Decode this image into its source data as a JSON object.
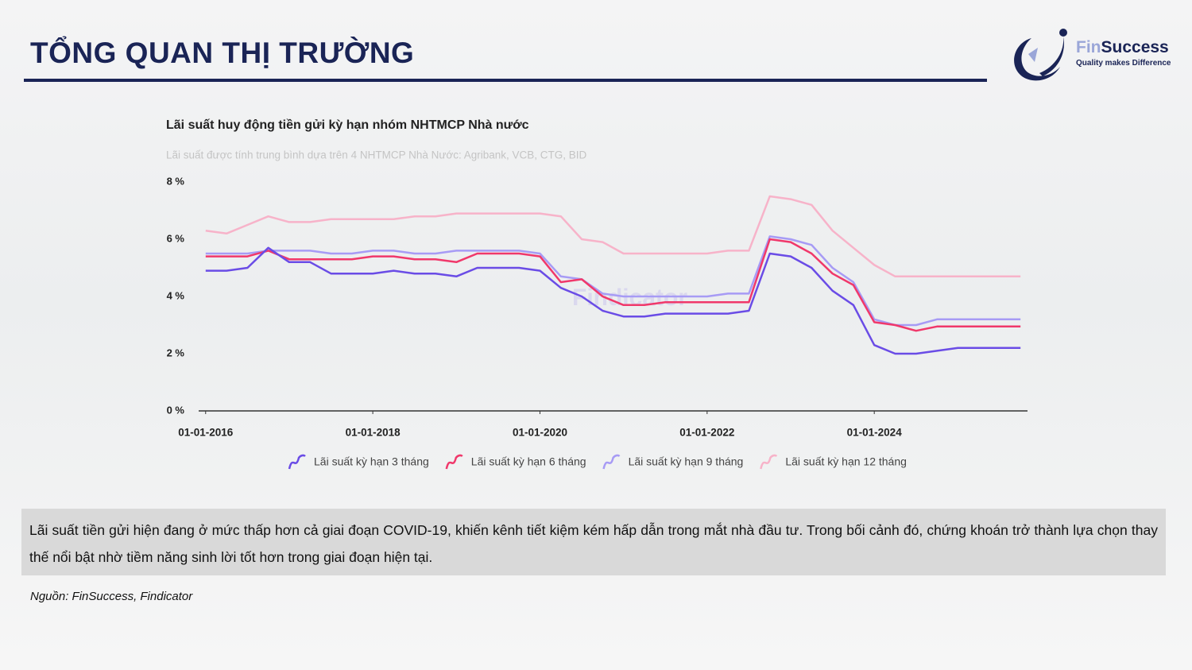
{
  "header": {
    "title": "TỔNG QUAN THỊ TRƯỜNG"
  },
  "logo": {
    "name_part1": "Fin",
    "name_part2": "Success",
    "tagline": "Quality makes Difference"
  },
  "chart_data": {
    "type": "line",
    "title": "Lãi suất huy động tiền gửi kỳ hạn nhóm NHTMCP Nhà nước",
    "subtitle": "Lãi suất được tính trung bình dựa trên 4 NHTMCP Nhà Nước: Agribank, VCB, CTG, BID",
    "watermark": "Findicator",
    "x": [
      "01-01-2016",
      "01-04-2016",
      "01-07-2016",
      "01-10-2016",
      "01-01-2017",
      "01-04-2017",
      "01-07-2017",
      "01-10-2017",
      "01-01-2018",
      "01-04-2018",
      "01-07-2018",
      "01-10-2018",
      "01-01-2019",
      "01-04-2019",
      "01-07-2019",
      "01-10-2019",
      "01-01-2020",
      "01-04-2020",
      "01-07-2020",
      "01-10-2020",
      "01-01-2021",
      "01-04-2021",
      "01-07-2021",
      "01-10-2021",
      "01-01-2022",
      "01-04-2022",
      "01-07-2022",
      "01-10-2022",
      "01-01-2023",
      "01-04-2023",
      "01-07-2023",
      "01-10-2023",
      "01-01-2024",
      "01-04-2024",
      "01-07-2024",
      "01-10-2024",
      "01-01-2025",
      "01-04-2025",
      "01-07-2025",
      "01-10-2025"
    ],
    "series": [
      {
        "name": "Lãi suất kỳ hạn 3 tháng",
        "color": "#6a4ce6",
        "values": [
          4.9,
          4.9,
          5.0,
          5.7,
          5.2,
          5.2,
          4.8,
          4.8,
          4.8,
          4.9,
          4.8,
          4.8,
          4.7,
          5.0,
          5.0,
          5.0,
          4.9,
          4.3,
          4.0,
          3.5,
          3.3,
          3.3,
          3.4,
          3.4,
          3.4,
          3.4,
          3.5,
          5.5,
          5.4,
          5.0,
          4.2,
          3.7,
          2.3,
          2.0,
          2.0,
          2.1,
          2.2,
          2.2,
          2.2,
          2.2
        ]
      },
      {
        "name": "Lãi suất kỳ hạn 6 tháng",
        "color": "#f0386b",
        "values": [
          5.4,
          5.4,
          5.4,
          5.6,
          5.3,
          5.3,
          5.3,
          5.3,
          5.4,
          5.4,
          5.3,
          5.3,
          5.2,
          5.5,
          5.5,
          5.5,
          5.4,
          4.5,
          4.6,
          4.0,
          3.7,
          3.7,
          3.8,
          3.8,
          3.8,
          3.8,
          3.8,
          6.0,
          5.9,
          5.5,
          4.8,
          4.4,
          3.1,
          3.0,
          2.8,
          2.95,
          2.95,
          2.95,
          2.95,
          2.95
        ]
      },
      {
        "name": "Lãi suất kỳ hạn 9 tháng",
        "color": "#a79bf5",
        "values": [
          5.5,
          5.5,
          5.5,
          5.6,
          5.6,
          5.6,
          5.5,
          5.5,
          5.6,
          5.6,
          5.5,
          5.5,
          5.6,
          5.6,
          5.6,
          5.6,
          5.5,
          4.7,
          4.6,
          4.1,
          4.0,
          4.0,
          4.0,
          4.0,
          4.0,
          4.1,
          4.1,
          6.1,
          6.0,
          5.8,
          5.0,
          4.5,
          3.2,
          3.0,
          3.0,
          3.2,
          3.2,
          3.2,
          3.2,
          3.2
        ]
      },
      {
        "name": "Lãi suất kỳ hạn 12 tháng",
        "color": "#f7b3c9",
        "values": [
          6.3,
          6.2,
          6.5,
          6.8,
          6.6,
          6.6,
          6.7,
          6.7,
          6.7,
          6.7,
          6.8,
          6.8,
          6.9,
          6.9,
          6.9,
          6.9,
          6.9,
          6.8,
          6.0,
          5.9,
          5.5,
          5.5,
          5.5,
          5.5,
          5.5,
          5.6,
          5.6,
          7.5,
          7.4,
          7.2,
          6.3,
          5.7,
          5.1,
          4.7,
          4.7,
          4.7,
          4.7,
          4.7,
          4.7,
          4.7
        ]
      }
    ],
    "xlim": [
      "01-12-2015",
      "01-11-2025"
    ],
    "xticks": [
      "01-01-2016",
      "01-01-2018",
      "01-01-2020",
      "01-01-2022",
      "01-01-2024"
    ],
    "ylim": [
      0,
      8
    ],
    "yticks": [
      {
        "value": 0,
        "label": "0 %"
      },
      {
        "value": 2,
        "label": "2 %"
      },
      {
        "value": 4,
        "label": "4 %"
      },
      {
        "value": 6,
        "label": "6 %"
      },
      {
        "value": 8,
        "label": "8 %"
      }
    ],
    "grid": false,
    "legend": "bottom"
  },
  "note": "Lãi suất tiền gửi hiện đang ở mức thấp hơn cả giai đoạn COVID-19, khiến kênh tiết kiệm kém hấp dẫn trong mắt nhà đầu tư. Trong bối cảnh đó, chứng khoán trở thành lựa chọn thay thế nổi bật nhờ tiềm năng sinh lời tốt hơn trong giai đoạn hiện tại.",
  "source": "Nguồn: FinSuccess, Findicator"
}
